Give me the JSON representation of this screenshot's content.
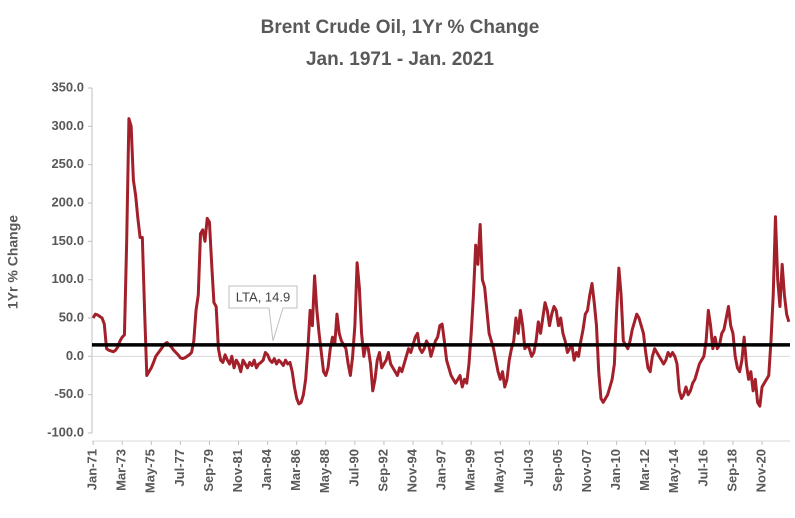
{
  "chart_data": {
    "type": "line",
    "title": "Brent Crude Oil, 1Yr %  Change",
    "subtitle": "Jan. 1971 - Jan. 2021",
    "y_axis_label": "1Yr % Change",
    "annotation": "LTA, 14.9",
    "lta_value": 14.9,
    "lta_color": "#000000",
    "grid": false,
    "ylim": [
      -100,
      350
    ],
    "yticks": [
      {
        "value": -100,
        "label": "-100.0"
      },
      {
        "value": -50,
        "label": "-50.0"
      },
      {
        "value": 0,
        "label": "0.0"
      },
      {
        "value": 50,
        "label": "50.0"
      },
      {
        "value": 100,
        "label": "100.0"
      },
      {
        "value": 150,
        "label": "150.0"
      },
      {
        "value": 200,
        "label": "200.0"
      },
      {
        "value": 250,
        "label": "250.0"
      },
      {
        "value": 300,
        "label": "300.0"
      },
      {
        "value": 350,
        "label": "350.0"
      }
    ],
    "categories": [
      "Jan-71",
      null,
      null,
      null,
      null,
      null,
      null,
      null,
      null,
      null,
      null,
      null,
      null,
      "Mar-73",
      null,
      null,
      null,
      null,
      null,
      null,
      null,
      null,
      null,
      null,
      null,
      null,
      "May-75",
      null,
      null,
      null,
      null,
      null,
      null,
      null,
      null,
      null,
      null,
      null,
      null,
      "Jul-77",
      null,
      null,
      null,
      null,
      null,
      null,
      null,
      null,
      null,
      null,
      null,
      null,
      "Sep-79",
      null,
      null,
      null,
      null,
      null,
      null,
      null,
      null,
      null,
      null,
      null,
      null,
      "Nov-81",
      null,
      null,
      null,
      null,
      null,
      null,
      null,
      null,
      null,
      null,
      null,
      null,
      "Jan-84",
      null,
      null,
      null,
      null,
      null,
      null,
      null,
      null,
      null,
      null,
      null,
      null,
      "Mar-86",
      null,
      null,
      null,
      null,
      null,
      null,
      null,
      null,
      null,
      null,
      null,
      null,
      "May-88",
      null,
      null,
      null,
      null,
      null,
      null,
      null,
      null,
      null,
      null,
      null,
      null,
      "Jul-90",
      null,
      null,
      null,
      null,
      null,
      null,
      null,
      null,
      null,
      null,
      null,
      null,
      "Sep-92",
      null,
      null,
      null,
      null,
      null,
      null,
      null,
      null,
      null,
      null,
      null,
      null,
      "Nov-94",
      null,
      null,
      null,
      null,
      null,
      null,
      null,
      null,
      null,
      null,
      null,
      null,
      "Jan-97",
      null,
      null,
      null,
      null,
      null,
      null,
      null,
      null,
      null,
      null,
      null,
      null,
      "Mar-99",
      null,
      null,
      null,
      null,
      null,
      null,
      null,
      null,
      null,
      null,
      null,
      null,
      "May-01",
      null,
      null,
      null,
      null,
      null,
      null,
      null,
      null,
      null,
      null,
      null,
      null,
      "Jul-03",
      null,
      null,
      null,
      null,
      null,
      null,
      null,
      null,
      null,
      null,
      null,
      null,
      "Sep-05",
      null,
      null,
      null,
      null,
      null,
      null,
      null,
      null,
      null,
      null,
      null,
      null,
      "Nov-07",
      null,
      null,
      null,
      null,
      null,
      null,
      null,
      null,
      null,
      null,
      null,
      null,
      "Jan-10",
      null,
      null,
      null,
      null,
      null,
      null,
      null,
      null,
      null,
      null,
      null,
      null,
      "Mar-12",
      null,
      null,
      null,
      null,
      null,
      null,
      null,
      null,
      null,
      null,
      null,
      null,
      "May-14",
      null,
      null,
      null,
      null,
      null,
      null,
      null,
      null,
      null,
      null,
      null,
      null,
      "Jul-16",
      null,
      null,
      null,
      null,
      null,
      null,
      null,
      null,
      null,
      null,
      null,
      null,
      "Sep-18",
      null,
      null,
      null,
      null,
      null,
      null,
      null,
      null,
      null,
      null,
      null,
      null,
      "Nov-20",
      null,
      null,
      null,
      null,
      null,
      null,
      null,
      null,
      null,
      null,
      null,
      null
    ],
    "series": [
      {
        "name": "1Yr % Change",
        "color": "#a3202b",
        "values": [
          50,
          55,
          54,
          52,
          50,
          42,
          10,
          8,
          7,
          6,
          8,
          12,
          20,
          25,
          28,
          150,
          310,
          300,
          230,
          210,
          180,
          155,
          155,
          60,
          -25,
          -20,
          -15,
          -8,
          0,
          4,
          8,
          12,
          16,
          18,
          15,
          12,
          8,
          5,
          2,
          -2,
          -3,
          -2,
          0,
          2,
          5,
          20,
          60,
          80,
          160,
          165,
          150,
          180,
          175,
          120,
          70,
          65,
          10,
          -5,
          -8,
          2,
          -5,
          -10,
          0,
          -15,
          -5,
          -10,
          -20,
          -5,
          -10,
          -15,
          -8,
          -12,
          -5,
          -15,
          -10,
          -8,
          -5,
          5,
          2,
          -5,
          -8,
          -3,
          -10,
          -5,
          -8,
          -12,
          -5,
          -10,
          -8,
          -20,
          -40,
          -55,
          -62,
          -60,
          -50,
          -30,
          10,
          60,
          40,
          105,
          60,
          30,
          5,
          -20,
          -25,
          -15,
          10,
          25,
          15,
          55,
          30,
          20,
          15,
          10,
          -10,
          -25,
          0,
          40,
          122,
          90,
          30,
          0,
          15,
          10,
          -10,
          -45,
          -30,
          -5,
          5,
          -15,
          -10,
          -5,
          5,
          -10,
          -15,
          -20,
          -25,
          -15,
          -20,
          -10,
          0,
          10,
          5,
          15,
          25,
          30,
          10,
          5,
          10,
          20,
          15,
          0,
          10,
          20,
          25,
          40,
          42,
          20,
          -5,
          -15,
          -25,
          -30,
          -35,
          -30,
          -25,
          -40,
          -30,
          -35,
          -10,
          30,
          80,
          145,
          120,
          172,
          100,
          90,
          60,
          30,
          20,
          10,
          -5,
          -20,
          -30,
          -20,
          -40,
          -30,
          -5,
          10,
          20,
          50,
          30,
          60,
          40,
          10,
          15,
          10,
          0,
          5,
          20,
          45,
          30,
          50,
          70,
          60,
          40,
          55,
          65,
          60,
          40,
          50,
          30,
          20,
          5,
          10,
          15,
          -5,
          5,
          0,
          20,
          35,
          55,
          60,
          80,
          95,
          70,
          40,
          -20,
          -55,
          -60,
          -55,
          -50,
          -40,
          -30,
          -10,
          60,
          115,
          80,
          20,
          15,
          10,
          20,
          35,
          45,
          55,
          50,
          40,
          30,
          5,
          -15,
          -20,
          0,
          10,
          5,
          0,
          -5,
          -10,
          -5,
          5,
          0,
          5,
          0,
          -10,
          -45,
          -55,
          -50,
          -40,
          -50,
          -45,
          -35,
          -30,
          -20,
          -10,
          -5,
          0,
          20,
          60,
          40,
          10,
          25,
          10,
          15,
          30,
          35,
          50,
          65,
          40,
          30,
          0,
          -15,
          -20,
          -5,
          25,
          -10,
          -30,
          -20,
          -45,
          -30,
          -60,
          -65,
          -40,
          -35,
          -30,
          -25,
          20,
          80,
          182,
          100,
          65,
          120,
          80,
          55,
          45
        ]
      }
    ]
  }
}
